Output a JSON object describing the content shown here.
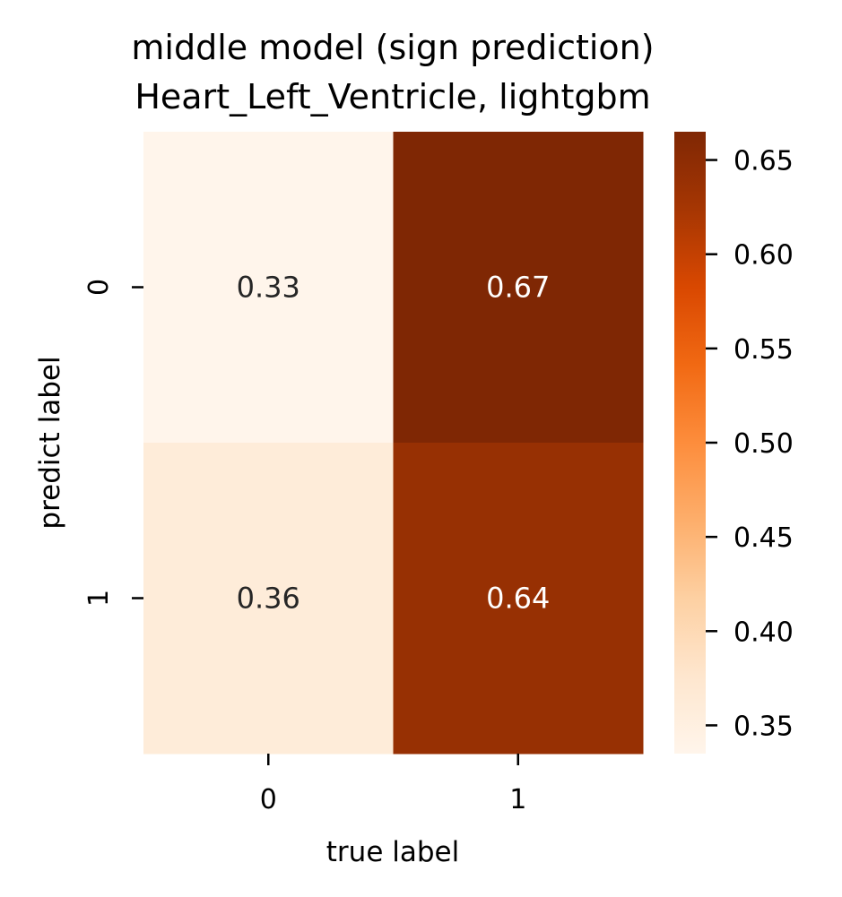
{
  "chart_data": {
    "type": "heatmap",
    "title_lines": [
      "middle model (sign prediction)",
      "Heart_Left_Ventricle, lightgbm"
    ],
    "xlabel": "true label",
    "ylabel": "predict label",
    "x_categories": [
      "0",
      "1"
    ],
    "y_categories": [
      "0",
      "1"
    ],
    "values": [
      [
        0.33,
        0.67
      ],
      [
        0.36,
        0.64
      ]
    ],
    "cell_labels": [
      [
        "0.33",
        "0.67"
      ],
      [
        "0.36",
        "0.64"
      ]
    ],
    "colormap": "Oranges",
    "colorbar": {
      "range": [
        0.335,
        0.665
      ],
      "ticks": [
        0.35,
        0.4,
        0.45,
        0.5,
        0.55,
        0.6,
        0.65
      ],
      "tick_labels": [
        "0.35",
        "0.40",
        "0.45",
        "0.50",
        "0.55",
        "0.60",
        "0.65"
      ]
    }
  }
}
